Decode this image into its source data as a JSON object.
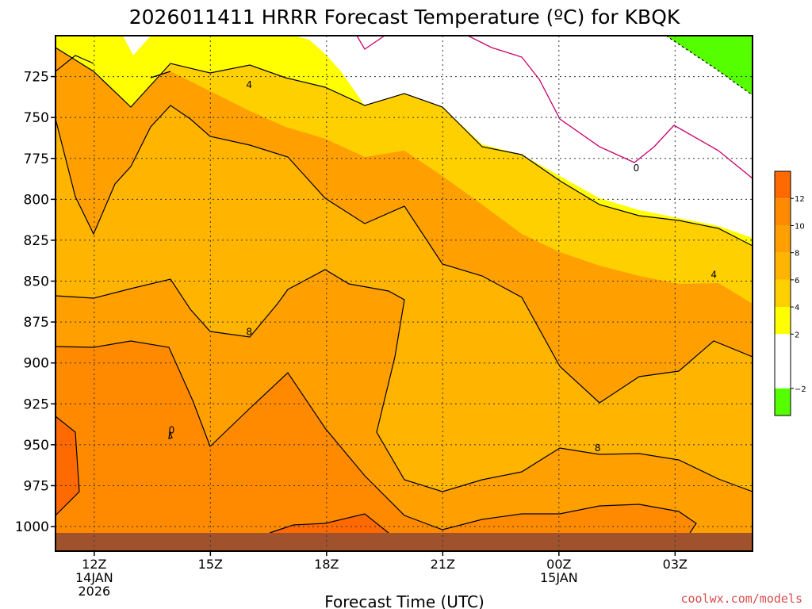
{
  "chart_data": {
    "type": "heatmap",
    "title": "2026011411 HRRR Forecast Temperature (ºC) for KBQK",
    "xlabel": "Forecast Time (UTC)",
    "ylabel": "",
    "credit": "coolwx.com/models",
    "x_range_hours": [
      11,
      29
    ],
    "x_ticks": [
      {
        "hour": 12,
        "lines": [
          "12Z",
          "14JAN",
          "2026"
        ]
      },
      {
        "hour": 15,
        "lines": [
          "15Z"
        ]
      },
      {
        "hour": 18,
        "lines": [
          "18Z"
        ]
      },
      {
        "hour": 21,
        "lines": [
          "21Z"
        ]
      },
      {
        "hour": 24,
        "lines": [
          "00Z",
          "15JAN"
        ]
      },
      {
        "hour": 27,
        "lines": [
          "03Z"
        ]
      }
    ],
    "y_range_hpa": [
      700,
      1015
    ],
    "y_ticks": [
      "725",
      "750",
      "775",
      "800",
      "825",
      "850",
      "875",
      "900",
      "925",
      "950",
      "975",
      "1000"
    ],
    "colorbar": {
      "labels": [
        "12",
        "10",
        "8",
        "6",
        "4",
        "2",
        "−2"
      ],
      "bands": [
        {
          "from": 12,
          "to": 14,
          "color": "#ff6a00"
        },
        {
          "from": 10,
          "to": 12,
          "color": "#ff8a00"
        },
        {
          "from": 8,
          "to": 10,
          "color": "#ff9f00"
        },
        {
          "from": 6,
          "to": 8,
          "color": "#ffb400"
        },
        {
          "from": 4,
          "to": 6,
          "color": "#ffd000"
        },
        {
          "from": 2,
          "to": 4,
          "color": "#ffff00"
        },
        {
          "from": -2,
          "to": 2,
          "color": "#ffffff"
        },
        {
          "from": -4,
          "to": -2,
          "color": "#55ff00"
        }
      ]
    },
    "contour_labels": [
      {
        "text": "4",
        "hour": 16.0,
        "hpa": 730
      },
      {
        "text": "0",
        "hour": 26.0,
        "hpa": 781
      },
      {
        "text": "8",
        "hour": 16.0,
        "hpa": 881
      },
      {
        "text": "4",
        "hour": 28.0,
        "hpa": 846
      },
      {
        "text": "8",
        "hour": 25.0,
        "hpa": 952
      },
      {
        "text": "0",
        "hour": 14.0,
        "hpa": 941
      }
    ],
    "terrain_color": "#a0522d",
    "surface_pressure_hpa": 1006
  }
}
